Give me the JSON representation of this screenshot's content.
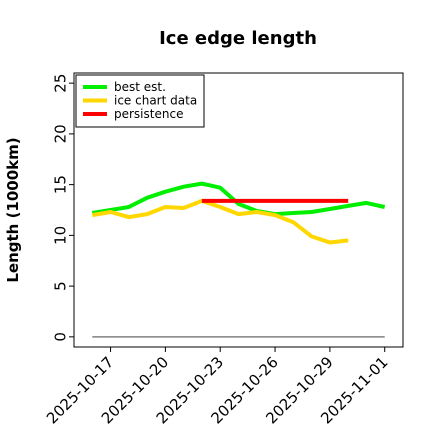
{
  "chart_data": {
    "type": "line",
    "title": "Ice edge length",
    "xlabel": "",
    "ylabel": "Length (1000km)",
    "xlim": [
      "2025-10-15",
      "2025-11-02"
    ],
    "ylim": [
      -1,
      26
    ],
    "yticks": [
      0,
      5,
      10,
      15,
      20,
      25
    ],
    "xticks": [
      "2025-10-17",
      "2025-10-20",
      "2025-10-23",
      "2025-10-26",
      "2025-10-29",
      "2025-11-01"
    ],
    "grid": false,
    "legend_placement": "top-left",
    "series": [
      {
        "name": "best est.",
        "color": "#00ee00",
        "points": [
          [
            "2025-10-16",
            12.2
          ],
          [
            "2025-10-17",
            12.5
          ],
          [
            "2025-10-18",
            12.8
          ],
          [
            "2025-10-19",
            13.7
          ],
          [
            "2025-10-20",
            14.3
          ],
          [
            "2025-10-21",
            14.8
          ],
          [
            "2025-10-22",
            15.1
          ],
          [
            "2025-10-23",
            14.7
          ],
          [
            "2025-10-24",
            13.1
          ],
          [
            "2025-10-25",
            12.4
          ],
          [
            "2025-10-26",
            12.1
          ],
          [
            "2025-10-27",
            12.2
          ],
          [
            "2025-10-28",
            12.3
          ],
          [
            "2025-10-29",
            12.6
          ],
          [
            "2025-10-30",
            12.9
          ],
          [
            "2025-10-31",
            13.2
          ],
          [
            "2025-11-01",
            12.8
          ]
        ]
      },
      {
        "name": "ice chart data",
        "color": "#ffd700",
        "points": [
          [
            "2025-10-16",
            12.0
          ],
          [
            "2025-10-17",
            12.3
          ],
          [
            "2025-10-18",
            11.8
          ],
          [
            "2025-10-19",
            12.1
          ],
          [
            "2025-10-20",
            12.8
          ],
          [
            "2025-10-21",
            12.7
          ],
          [
            "2025-10-22",
            13.4
          ],
          [
            "2025-10-23",
            12.8
          ],
          [
            "2025-10-24",
            12.1
          ],
          [
            "2025-10-25",
            12.3
          ],
          [
            "2025-10-26",
            12.0
          ],
          [
            "2025-10-27",
            11.3
          ],
          [
            "2025-10-28",
            9.9
          ],
          [
            "2025-10-29",
            9.3
          ],
          [
            "2025-10-30",
            9.5
          ]
        ]
      },
      {
        "name": "persistence",
        "color": "#ff0000",
        "points": [
          [
            "2025-10-22",
            13.4
          ],
          [
            "2025-10-30",
            13.4
          ]
        ]
      }
    ],
    "reference_line": {
      "y": 0,
      "color": "#808080"
    }
  }
}
